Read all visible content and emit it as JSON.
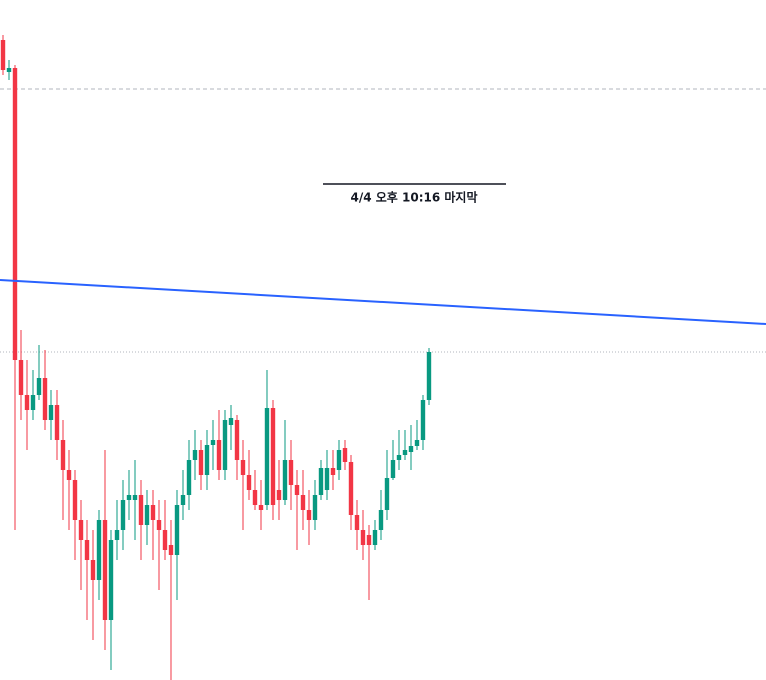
{
  "chart_data": {
    "type": "candlestick",
    "x": [
      0,
      1,
      2,
      3,
      4,
      5,
      6,
      7,
      8,
      9,
      10,
      11,
      12,
      13,
      14,
      15,
      16,
      17,
      18,
      19,
      20,
      21,
      22,
      23,
      24,
      25,
      26,
      27,
      28,
      29,
      30,
      31,
      32,
      33,
      34,
      35,
      36,
      37,
      38,
      39,
      40,
      41,
      42,
      43,
      44,
      45,
      46,
      47,
      48,
      49,
      50,
      51,
      52,
      53,
      54,
      55,
      56,
      57,
      58,
      59,
      60,
      61,
      62,
      63,
      64,
      65,
      66,
      67,
      68,
      69,
      70,
      71
    ],
    "open": [
      640,
      608,
      612,
      320,
      285,
      270,
      285,
      302,
      260,
      275,
      240,
      210,
      200,
      160,
      140,
      120,
      100,
      160,
      60,
      140,
      150,
      180,
      180,
      185,
      155,
      175,
      160,
      150,
      135,
      125,
      175,
      185,
      220,
      230,
      205,
      235,
      240,
      210,
      255,
      260,
      220,
      205,
      190,
      175,
      175,
      272,
      190,
      180,
      220,
      195,
      185,
      170,
      160,
      185,
      190,
      212,
      210,
      232,
      218,
      165,
      150,
      145,
      135,
      150,
      170,
      202,
      220,
      225,
      228,
      234,
      240,
      280
    ],
    "high": [
      645,
      620,
      615,
      350,
      320,
      310,
      335,
      330,
      290,
      290,
      260,
      230,
      210,
      180,
      160,
      150,
      170,
      230,
      150,
      180,
      200,
      210,
      220,
      200,
      190,
      190,
      180,
      180,
      160,
      190,
      210,
      240,
      250,
      240,
      250,
      260,
      270,
      270,
      275,
      265,
      240,
      230,
      210,
      200,
      310,
      280,
      220,
      260,
      240,
      210,
      210,
      190,
      200,
      220,
      230,
      230,
      240,
      240,
      225,
      180,
      170,
      155,
      160,
      190,
      230,
      240,
      250,
      250,
      255,
      260,
      285,
      332
    ],
    "low": [
      605,
      600,
      150,
      260,
      230,
      260,
      280,
      250,
      240,
      220,
      160,
      150,
      120,
      90,
      60,
      40,
      80,
      30,
      10,
      120,
      130,
      160,
      140,
      120,
      135,
      120,
      90,
      120,
      0,
      80,
      160,
      170,
      200,
      190,
      190,
      210,
      200,
      200,
      230,
      200,
      150,
      180,
      170,
      150,
      170,
      160,
      160,
      175,
      170,
      130,
      150,
      135,
      150,
      180,
      180,
      190,
      200,
      210,
      150,
      130,
      120,
      80,
      130,
      140,
      160,
      200,
      210,
      220,
      210,
      230,
      230,
      275
    ],
    "close": [
      610,
      612,
      320,
      285,
      270,
      285,
      302,
      260,
      275,
      240,
      210,
      200,
      160,
      140,
      120,
      100,
      160,
      60,
      140,
      150,
      180,
      185,
      185,
      155,
      175,
      160,
      150,
      130,
      125,
      175,
      185,
      220,
      230,
      205,
      235,
      240,
      210,
      260,
      262,
      220,
      205,
      190,
      175,
      170,
      272,
      175,
      180,
      220,
      195,
      185,
      170,
      160,
      185,
      212,
      212,
      205,
      230,
      218,
      165,
      150,
      135,
      135,
      150,
      170,
      202,
      220,
      225,
      230,
      234,
      240,
      280,
      328
    ],
    "up_color": "#089981",
    "down_color": "#f23645",
    "xlim": [
      -0.5,
      127.17
    ],
    "ylim": [
      0,
      680
    ],
    "trendline": {
      "x": [
        -0.5,
        127.17
      ],
      "values": [
        400,
        356
      ],
      "color": "#2962ff"
    },
    "hlines": [
      {
        "value": 591,
        "color": "#b2b5be",
        "style": "dashed"
      },
      {
        "value": 328,
        "color": "#b2b5be",
        "style": "dotted"
      }
    ],
    "annotation": "4/4 오후 10:16 마지막"
  }
}
